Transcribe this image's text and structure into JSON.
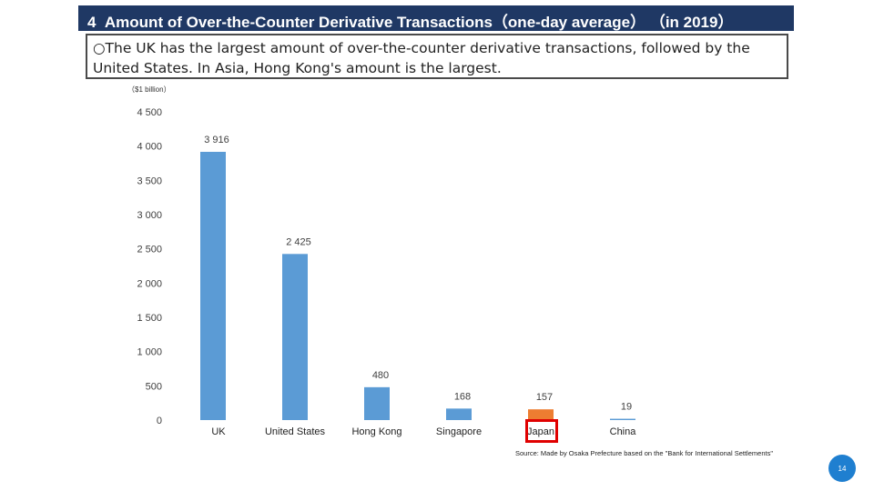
{
  "slide": {
    "title": "4  Amount of Over-the-Counter Derivative Transactions（one-day average） （in 2019）",
    "summary": "○The UK has the largest amount of over-the-counter derivative transactions, followed by the United States. In Asia, Hong Kong's amount is the largest.",
    "unit": "（$1 billion）",
    "source": "Source: Made by Osaka Prefecture based on the \"Bank for International Settlements\"",
    "page_number": "14"
  },
  "chart_data": {
    "type": "bar",
    "categories": [
      "UK",
      "United States",
      "Hong Kong",
      "Singapore",
      "Japan",
      "China"
    ],
    "values": [
      3916,
      2425,
      480,
      168,
      157,
      19
    ],
    "data_labels": [
      "3 916",
      "2 425",
      "480",
      "168",
      "157",
      "19"
    ],
    "highlight_category": "Japan",
    "ylim": [
      0,
      4500
    ],
    "yticks": [
      0,
      500,
      1000,
      1500,
      2000,
      2500,
      3000,
      3500,
      4000,
      4500
    ],
    "ytick_labels": [
      "0",
      "500",
      "1 000",
      "1 500",
      "2 000",
      "2 500",
      "3 000",
      "3 500",
      "4 000",
      "4 500"
    ],
    "grid": false,
    "colors": {
      "default": "#5b9bd5",
      "highlight": "#ed7d31",
      "annotation_box": "#e00000"
    }
  }
}
